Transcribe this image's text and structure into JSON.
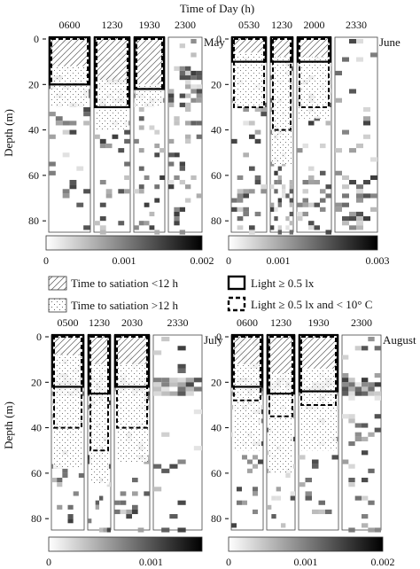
{
  "figure": {
    "top_title": "Time of Day (h)",
    "ylabel": "Depth (m)"
  },
  "legend": {
    "hatch_label": "Time to satiation <12 h",
    "dots_label": "Time to satiation >12 h",
    "solid_label": "Light ≥ 0.5 lx",
    "dashed_label": "Light ≥ 0.5 lx and < 10° C"
  },
  "chart_data": [
    {
      "type": "heatmap",
      "month": "May",
      "times": [
        "0600",
        "1230",
        "1930",
        "2300"
      ],
      "ylabel": "Depth (m)",
      "ylim": [
        0,
        85
      ],
      "yticks": [
        0,
        20,
        40,
        60,
        80
      ],
      "colorbar": {
        "min": 0,
        "max": 0.002,
        "ticks": [
          "0",
          "0.001",
          "0.002"
        ]
      },
      "satiation_lt12h_depth_m": [
        12,
        18,
        20
      ],
      "satiation_gt12h_depth_m": [
        30,
        40,
        30
      ],
      "light_depth_m": [
        20,
        30,
        22
      ],
      "light_and_lt10C_depth_m": [
        20,
        30,
        22
      ]
    },
    {
      "type": "heatmap",
      "month": "June",
      "times": [
        "0530",
        "1230",
        "2000",
        "2330"
      ],
      "ylabel": "Depth (m)",
      "ylim": [
        0,
        85
      ],
      "yticks": [
        0,
        20,
        40,
        60,
        80
      ],
      "colorbar": {
        "min": 0,
        "max": 0.003,
        "ticks": [
          "0",
          "0.001",
          "0.003"
        ]
      },
      "satiation_lt12h_depth_m": [
        6,
        8,
        8
      ],
      "satiation_gt12h_depth_m": [
        30,
        55,
        35
      ],
      "light_depth_m": [
        10,
        10,
        10
      ],
      "light_and_lt10C_depth_m": [
        30,
        40,
        30
      ]
    },
    {
      "type": "heatmap",
      "month": "July",
      "times": [
        "0500",
        "1230",
        "2030",
        "2330"
      ],
      "ylabel": "Depth (m)",
      "ylim": [
        0,
        85
      ],
      "yticks": [
        0,
        20,
        40,
        60,
        80
      ],
      "colorbar": {
        "min": 0,
        "max": 0.0015,
        "ticks": [
          "0",
          "0.001"
        ]
      },
      "satiation_lt12h_depth_m": [
        8,
        12,
        12
      ],
      "satiation_gt12h_depth_m": [
        58,
        65,
        55
      ],
      "light_depth_m": [
        22,
        25,
        22
      ],
      "light_and_lt10C_depth_m": [
        40,
        50,
        40
      ]
    },
    {
      "type": "heatmap",
      "month": "August",
      "times": [
        "0600",
        "1230",
        "1930",
        "2300"
      ],
      "ylabel": "Depth (m)",
      "ylim": [
        0,
        85
      ],
      "yticks": [
        0,
        20,
        40,
        60,
        80
      ],
      "colorbar": {
        "min": 0,
        "max": 0.002,
        "ticks": [
          "0",
          "0.001",
          "0.002"
        ]
      },
      "satiation_lt12h_depth_m": [
        12,
        16,
        14
      ],
      "satiation_gt12h_depth_m": [
        50,
        60,
        50
      ],
      "light_depth_m": [
        22,
        25,
        24
      ],
      "light_and_lt10C_depth_m": [
        28,
        35,
        30
      ]
    }
  ]
}
